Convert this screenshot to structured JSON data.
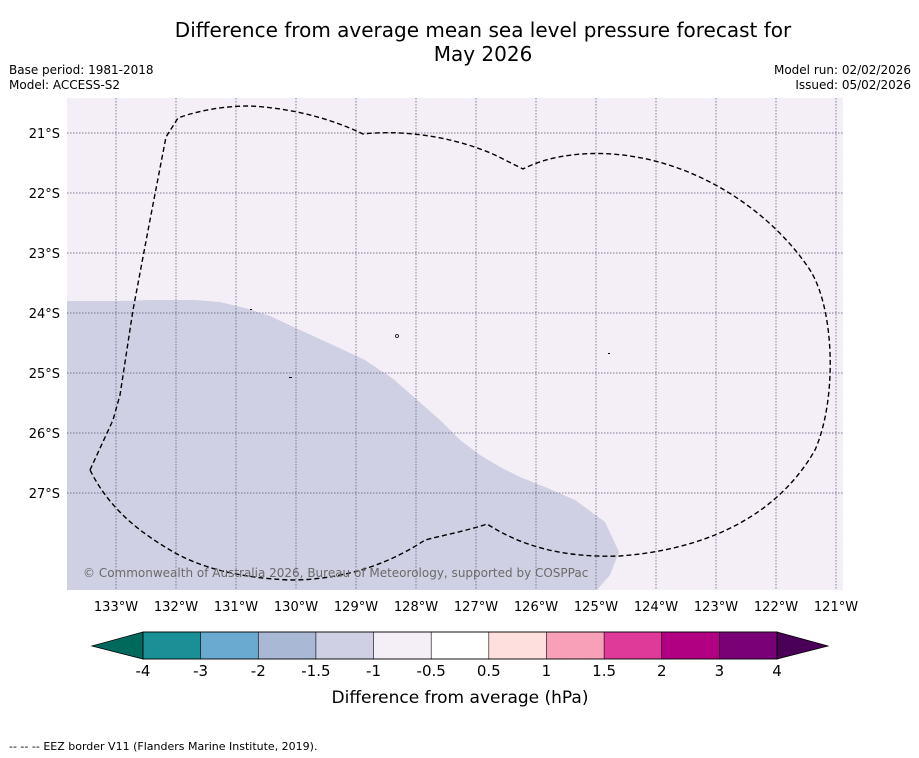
{
  "title": {
    "line1": "Difference from average mean sea level pressure forecast for",
    "line2": "May 2026"
  },
  "meta": {
    "base_period": "Base period: 1981-2018",
    "model": "Model: ACCESS-S2",
    "model_run": "Model run: 02/02/2026",
    "issued": "Issued: 05/02/2026"
  },
  "map": {
    "lat_labels": [
      "21°S",
      "22°S",
      "23°S",
      "24°S",
      "25°S",
      "26°S",
      "27°S"
    ],
    "lon_labels": [
      "133°W",
      "132°W",
      "131°W",
      "130°W",
      "129°W",
      "128°W",
      "127°W",
      "126°W",
      "125°W",
      "124°W",
      "123°W",
      "122°W",
      "121°W"
    ],
    "copyright": "© Commonwealth of Australia 2026, Bureau of Meteorology, supported by COSPPac",
    "background_category": "-1 to -0.5",
    "anomaly_region_category": "-1.5 to -1"
  },
  "colorbar": {
    "ticks": [
      "-4",
      "-3",
      "-2",
      "-1.5",
      "-1",
      "-0.5",
      "0.5",
      "1",
      "1.5",
      "2",
      "3",
      "4"
    ],
    "colors": [
      "#1b8f96",
      "#6aa9d0",
      "#a9b8d5",
      "#d0d0e4",
      "#f4eef6",
      "#ffffff",
      "#ffdede",
      "#f8a0b8",
      "#df3a9a",
      "#b20083",
      "#7a0077"
    ],
    "under_color": "#00695e",
    "over_color": "#4b0058",
    "label": "Difference from average (hPa)"
  },
  "footer": {
    "legend_symbol": "-- -- --",
    "text": "EEZ border V11 (Flanders Marine Institute, 2019)."
  },
  "colors": {
    "map_background": "#f4eef6",
    "anomaly_fill": "#d0d0e4",
    "grid": "#555577",
    "eez_line": "#000000"
  }
}
